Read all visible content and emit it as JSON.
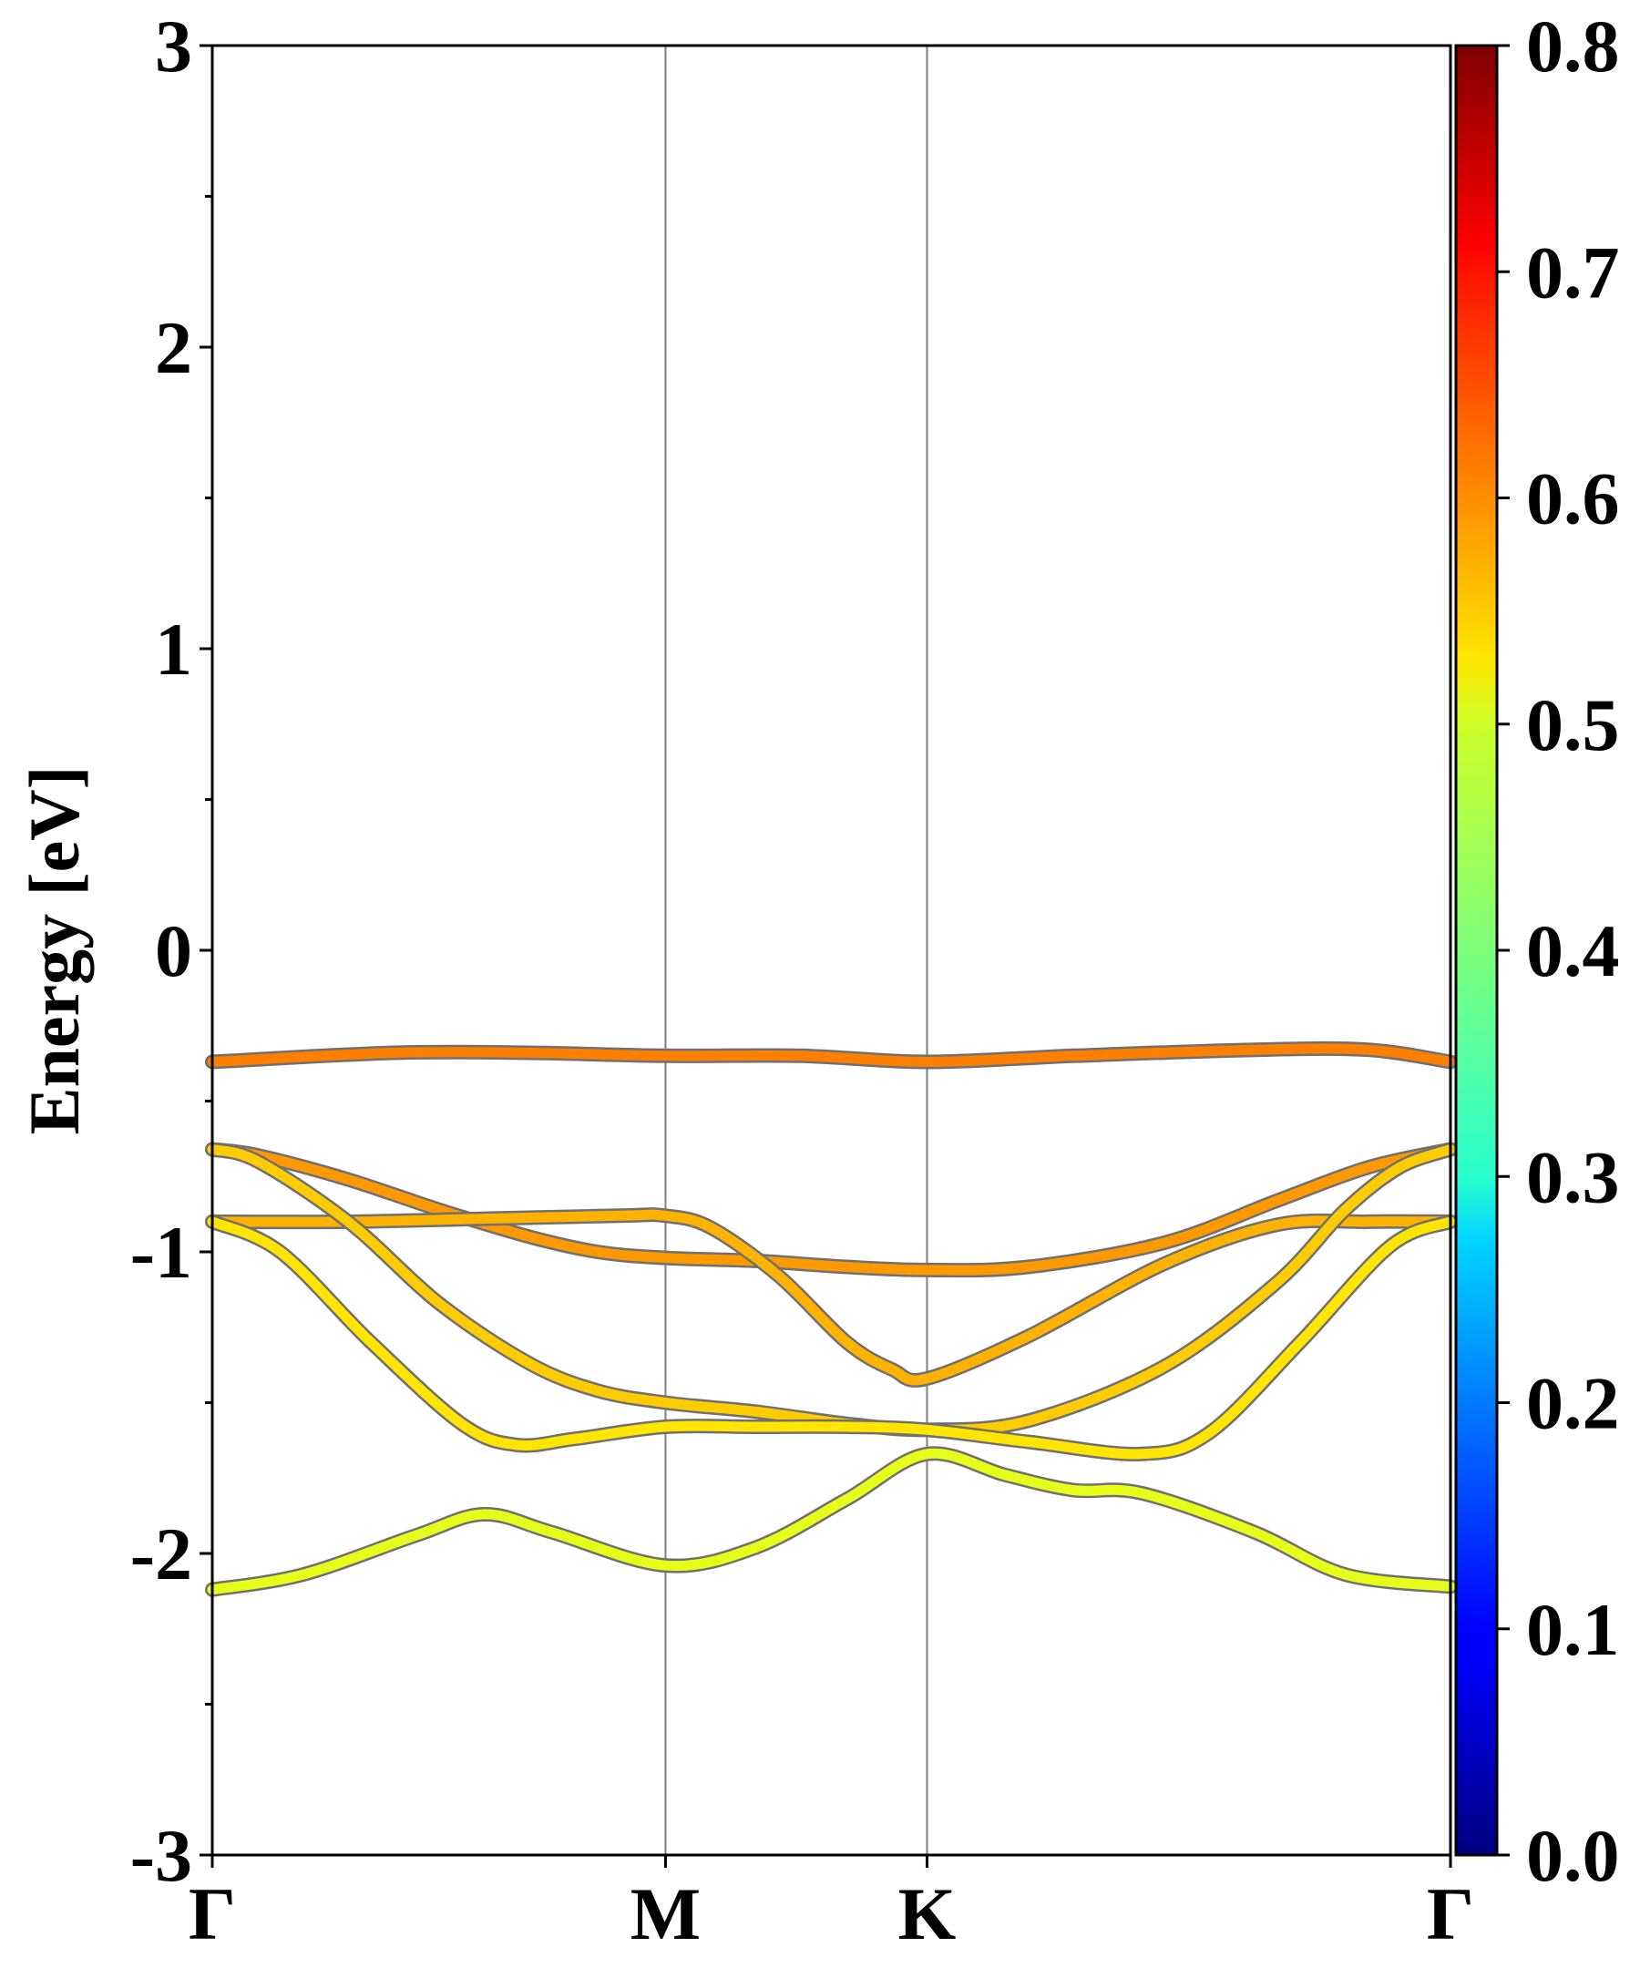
{
  "chart_data": {
    "type": "line",
    "title": "",
    "xlabel": "",
    "ylabel": "Energy [eV]",
    "ylim": [
      -3,
      3
    ],
    "yticks": [
      -3,
      -2,
      -1,
      0,
      1,
      2,
      3
    ],
    "ytick_labels": [
      "-3",
      "-2",
      "-1",
      "0",
      "1",
      "2",
      "3"
    ],
    "kpath": [
      {
        "label": "Γ",
        "position": 0.0
      },
      {
        "label": "M",
        "position": 1.0
      },
      {
        "label": "K",
        "position": 1.577
      },
      {
        "label": "Γ",
        "position": 2.732
      }
    ],
    "x_unit": "path (Γ–M = 1)",
    "colorbar": {
      "range": [
        0.0,
        0.8
      ],
      "ticks": [
        0.0,
        0.1,
        0.2,
        0.3,
        0.4,
        0.5,
        0.6,
        0.7,
        0.8
      ],
      "tick_labels": [
        "0.0",
        "0.1",
        "0.2",
        "0.3",
        "0.4",
        "0.5",
        "0.6",
        "0.7",
        "0.8"
      ],
      "colormap": "jet"
    },
    "grid": false,
    "vertical_lines_at_kpoints": true,
    "series": [
      {
        "weight": 0.6,
        "x": [
          0.0,
          0.4,
          0.7,
          1.0,
          1.3,
          1.577,
          1.9,
          2.3,
          2.55,
          2.732
        ],
        "y": [
          -0.37,
          -0.34,
          -0.34,
          -0.35,
          -0.35,
          -0.37,
          -0.35,
          -0.33,
          -0.33,
          -0.37
        ]
      },
      {
        "weight": 0.58,
        "x": [
          0.0,
          0.1,
          0.3,
          0.5,
          0.7,
          0.85,
          1.0,
          1.2,
          1.4,
          1.577,
          1.8,
          2.1,
          2.35,
          2.55,
          2.732
        ],
        "y": [
          -0.66,
          -0.68,
          -0.76,
          -0.86,
          -0.95,
          -1.0,
          -1.02,
          -1.03,
          -1.05,
          -1.06,
          -1.05,
          -0.97,
          -0.83,
          -0.72,
          -0.66
        ]
      },
      {
        "weight": 0.56,
        "x": [
          0.0,
          0.3,
          0.6,
          0.9,
          1.0,
          1.1,
          1.25,
          1.4,
          1.5,
          1.577,
          1.8,
          2.1,
          2.35,
          2.55,
          2.732
        ],
        "y": [
          -0.9,
          -0.9,
          -0.89,
          -0.88,
          -0.88,
          -0.92,
          -1.08,
          -1.3,
          -1.39,
          -1.42,
          -1.28,
          -1.04,
          -0.91,
          -0.9,
          -0.9
        ]
      },
      {
        "weight": 0.54,
        "x": [
          0.0,
          0.1,
          0.3,
          0.5,
          0.7,
          0.85,
          1.0,
          1.2,
          1.4,
          1.577,
          1.8,
          2.1,
          2.35,
          2.5,
          2.62,
          2.732
        ],
        "y": [
          -0.66,
          -0.7,
          -0.9,
          -1.17,
          -1.37,
          -1.46,
          -1.5,
          -1.53,
          -1.57,
          -1.59,
          -1.56,
          -1.38,
          -1.1,
          -0.86,
          -0.72,
          -0.66
        ]
      },
      {
        "weight": 0.52,
        "x": [
          0.0,
          0.15,
          0.35,
          0.55,
          0.67,
          0.8,
          1.0,
          1.2,
          1.4,
          1.577,
          1.8,
          2.05,
          2.2,
          2.4,
          2.6,
          2.732
        ],
        "y": [
          -0.9,
          -1.0,
          -1.3,
          -1.57,
          -1.64,
          -1.62,
          -1.58,
          -1.58,
          -1.58,
          -1.59,
          -1.63,
          -1.67,
          -1.6,
          -1.3,
          -0.98,
          -0.9
        ]
      },
      {
        "weight": 0.48,
        "x": [
          0.0,
          0.2,
          0.45,
          0.6,
          0.75,
          1.0,
          1.2,
          1.4,
          1.577,
          1.75,
          1.9,
          2.05,
          2.3,
          2.5,
          2.732
        ],
        "y": [
          -2.12,
          -2.07,
          -1.94,
          -1.87,
          -1.93,
          -2.04,
          -1.98,
          -1.82,
          -1.67,
          -1.74,
          -1.79,
          -1.8,
          -1.93,
          -2.07,
          -2.11
        ]
      }
    ]
  }
}
